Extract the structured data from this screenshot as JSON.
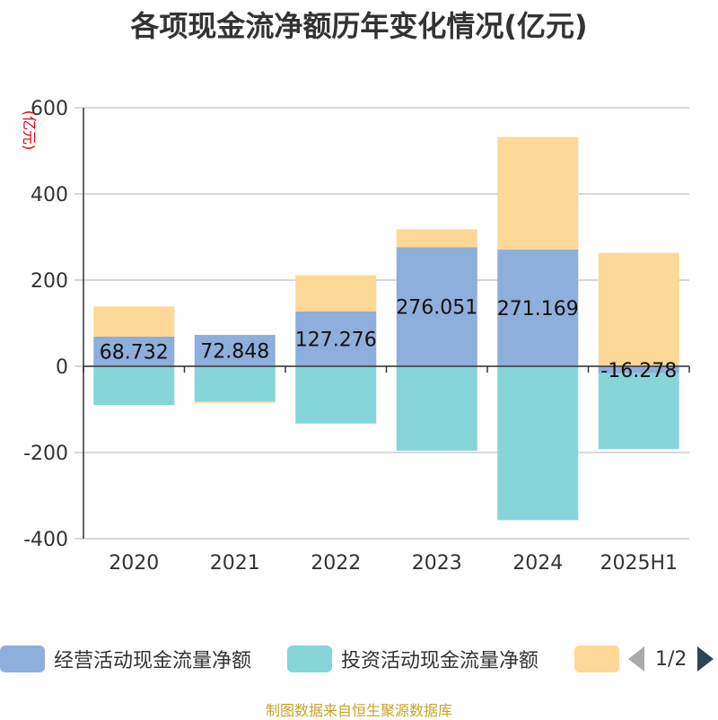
{
  "title": "各项现金流净额历年变化情况(亿元)",
  "source": "制图数据来自恒生聚源数据库",
  "legend": {
    "items": [
      {
        "label": "经营活动现金流量净额",
        "color": "#8eaedb"
      },
      {
        "label": "投资活动现金流量净额",
        "color": "#86d5d8"
      },
      {
        "label": "",
        "color": "#fdd896"
      }
    ],
    "page_indicator": "1/2"
  },
  "chart_data": {
    "type": "bar",
    "stacked": true,
    "ylabel": "(亿元)",
    "ylim": [
      -400,
      600
    ],
    "yticks": [
      600,
      400,
      200,
      0,
      -200,
      -400
    ],
    "ytick_labels": [
      "600",
      "400",
      "200",
      "0",
      "-200",
      "-400"
    ],
    "grid": true,
    "legend_position": "bottom",
    "categories": [
      "2020",
      "2021",
      "2022",
      "2023",
      "2024",
      "2025H1"
    ],
    "series": [
      {
        "name": "经营活动现金流量净额",
        "color": "#8eaedb",
        "values": [
          68.732,
          72.848,
          127.276,
          276.051,
          271.169,
          -16.278
        ],
        "labels": [
          "68.732",
          "72.848",
          "127.276",
          "276.051",
          "271.169",
          "-16.278"
        ]
      },
      {
        "name": "投资活动现金流量净额",
        "color": "#86d5d8",
        "values": [
          -90,
          -82,
          -133,
          -196,
          -357,
          -176
        ]
      },
      {
        "color": "#fdd896",
        "values": [
          70,
          -3,
          84,
          42,
          261,
          263
        ]
      }
    ]
  }
}
